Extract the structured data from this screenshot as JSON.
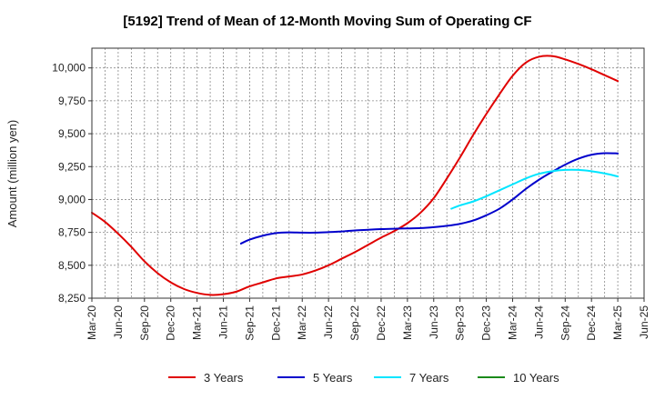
{
  "chart_data": {
    "type": "line",
    "title": "[5192]  Trend of Mean of 12-Month Moving Sum of Operating CF",
    "xlabel": "",
    "ylabel": "Amount (million yen)",
    "ylim": [
      8250,
      10150
    ],
    "yticks": [
      8250,
      8500,
      8750,
      9000,
      9250,
      9500,
      9750,
      10000
    ],
    "ytick_labels": [
      "8,250",
      "8,500",
      "8,750",
      "9,000",
      "9,250",
      "9,500",
      "9,750",
      "10,000"
    ],
    "x_categories": [
      "Mar-20",
      "Jun-20",
      "Sep-20",
      "Dec-20",
      "Mar-21",
      "Jun-21",
      "Sep-21",
      "Dec-21",
      "Mar-22",
      "Jun-22",
      "Sep-22",
      "Dec-22",
      "Mar-23",
      "Jun-23",
      "Sep-23",
      "Dec-23",
      "Mar-24",
      "Jun-24",
      "Sep-24",
      "Dec-24",
      "Mar-25",
      "Jun-25"
    ],
    "grid": true,
    "legend_position": "bottom",
    "series": [
      {
        "name": "3 Years",
        "color": "#e00000",
        "x": [
          0,
          0.5,
          1,
          1.5,
          2,
          2.5,
          3,
          3.5,
          4,
          4.5,
          5,
          5.5,
          6,
          6.5,
          7,
          7.5,
          8,
          8.5,
          9,
          9.5,
          10,
          10.5,
          11,
          11.5,
          12,
          12.5,
          13,
          13.5,
          14,
          14.5,
          15,
          15.5,
          16,
          16.5,
          17,
          17.5,
          18,
          18.5,
          19,
          19.5,
          20
        ],
        "values": [
          8900,
          8830,
          8740,
          8640,
          8530,
          8440,
          8370,
          8320,
          8290,
          8275,
          8280,
          8300,
          8340,
          8370,
          8400,
          8415,
          8430,
          8460,
          8500,
          8550,
          8600,
          8655,
          8710,
          8760,
          8820,
          8900,
          9010,
          9160,
          9320,
          9490,
          9650,
          9800,
          9940,
          10040,
          10085,
          10090,
          10065,
          10030,
          9990,
          9945,
          9900
        ]
      },
      {
        "name": "5 Years",
        "color": "#0000cc",
        "x": [
          5.67,
          6,
          6.5,
          7,
          7.5,
          8,
          8.5,
          9,
          9.5,
          10,
          10.5,
          11,
          11.5,
          12,
          12.5,
          13,
          13.5,
          14,
          14.5,
          15,
          15.5,
          16,
          16.5,
          17,
          17.5,
          18,
          18.5,
          19,
          19.5,
          20
        ],
        "values": [
          8665,
          8695,
          8725,
          8745,
          8750,
          8748,
          8748,
          8752,
          8757,
          8765,
          8770,
          8775,
          8778,
          8780,
          8783,
          8790,
          8800,
          8815,
          8840,
          8880,
          8930,
          9000,
          9080,
          9150,
          9210,
          9265,
          9310,
          9340,
          9352,
          9350
        ]
      },
      {
        "name": "7 Years",
        "color": "#00e5ff",
        "x": [
          13.67,
          14,
          14.5,
          15,
          15.5,
          16,
          16.5,
          17,
          17.5,
          18,
          18.5,
          19,
          19.5,
          20
        ],
        "values": [
          8930,
          8955,
          8985,
          9025,
          9070,
          9115,
          9160,
          9195,
          9215,
          9225,
          9225,
          9215,
          9198,
          9175
        ]
      },
      {
        "name": "10 Years",
        "color": "#1a8a1a",
        "x": [],
        "values": []
      }
    ]
  }
}
